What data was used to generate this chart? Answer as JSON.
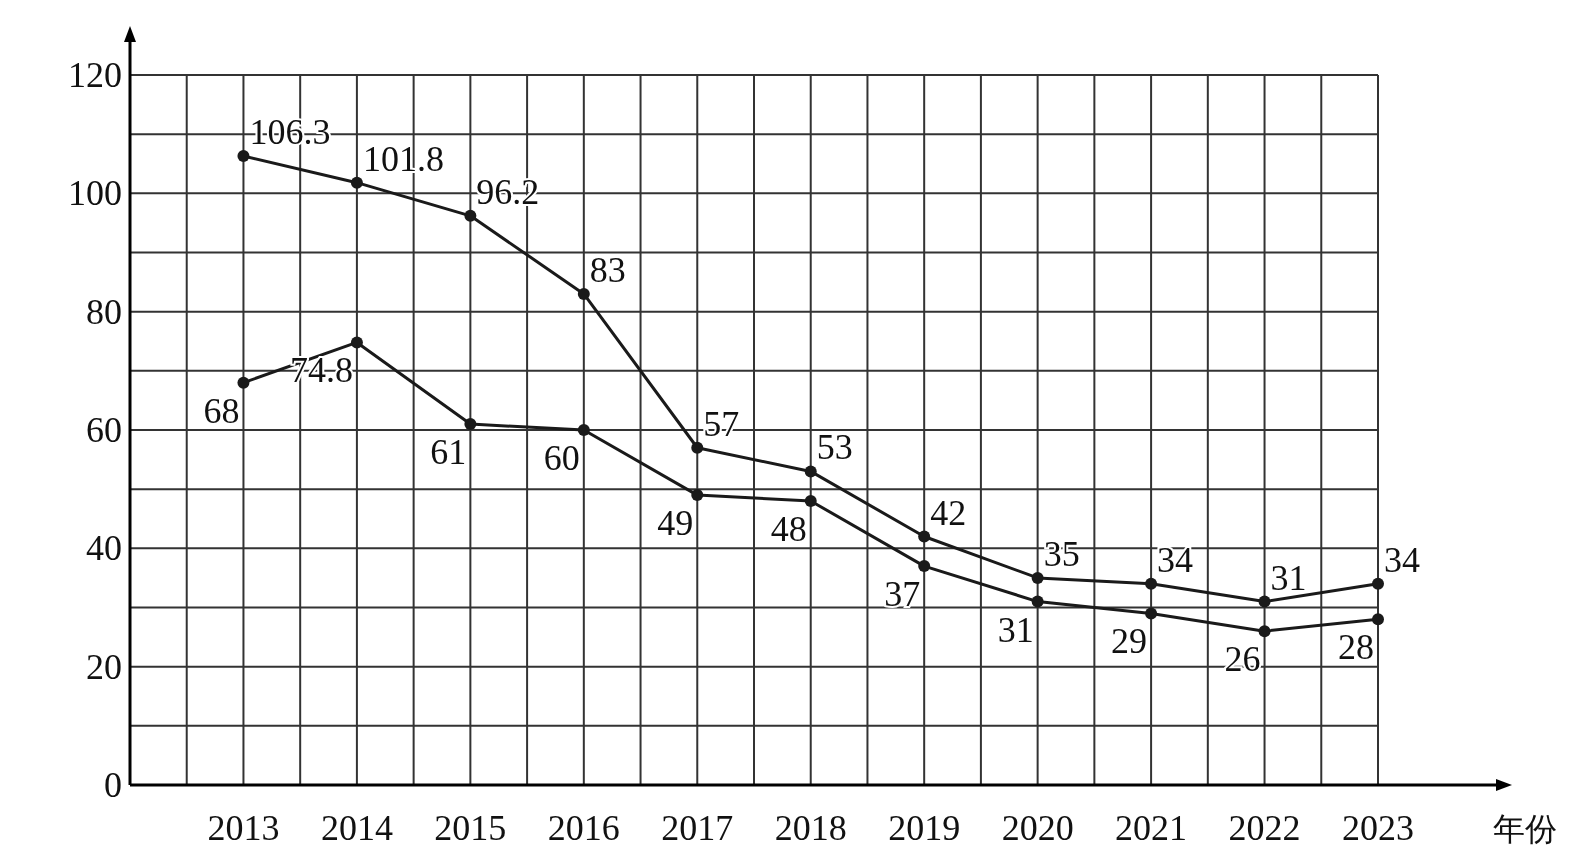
{
  "chart_data": {
    "type": "line",
    "xlabel": "年份",
    "categories": [
      "2013",
      "2014",
      "2015",
      "2016",
      "2017",
      "2018",
      "2019",
      "2020",
      "2021",
      "2022",
      "2023"
    ],
    "series": [
      {
        "color": "#1a1a1a",
        "values": [
          106.3,
          101.8,
          96.2,
          83,
          57,
          53,
          42,
          35,
          34,
          31,
          34
        ]
      },
      {
        "color": "#1a1a1a",
        "values": [
          68,
          74.8,
          61,
          60,
          49,
          48,
          37,
          31,
          29,
          26,
          28
        ]
      }
    ],
    "ylim": [
      0,
      120
    ],
    "yticks": [
      0,
      {
        "value": 10,
        "label": null
      },
      20,
      {
        "value": 30,
        "label": null
      },
      40,
      {
        "value": 50,
        "label": null
      },
      60,
      {
        "value": 70,
        "label": null
      },
      80,
      {
        "value": 90,
        "label": null
      },
      100,
      {
        "value": 110,
        "label": null
      },
      120
    ],
    "grid": true,
    "marker": "circle",
    "line_style": "solid",
    "data_labels": true
  }
}
